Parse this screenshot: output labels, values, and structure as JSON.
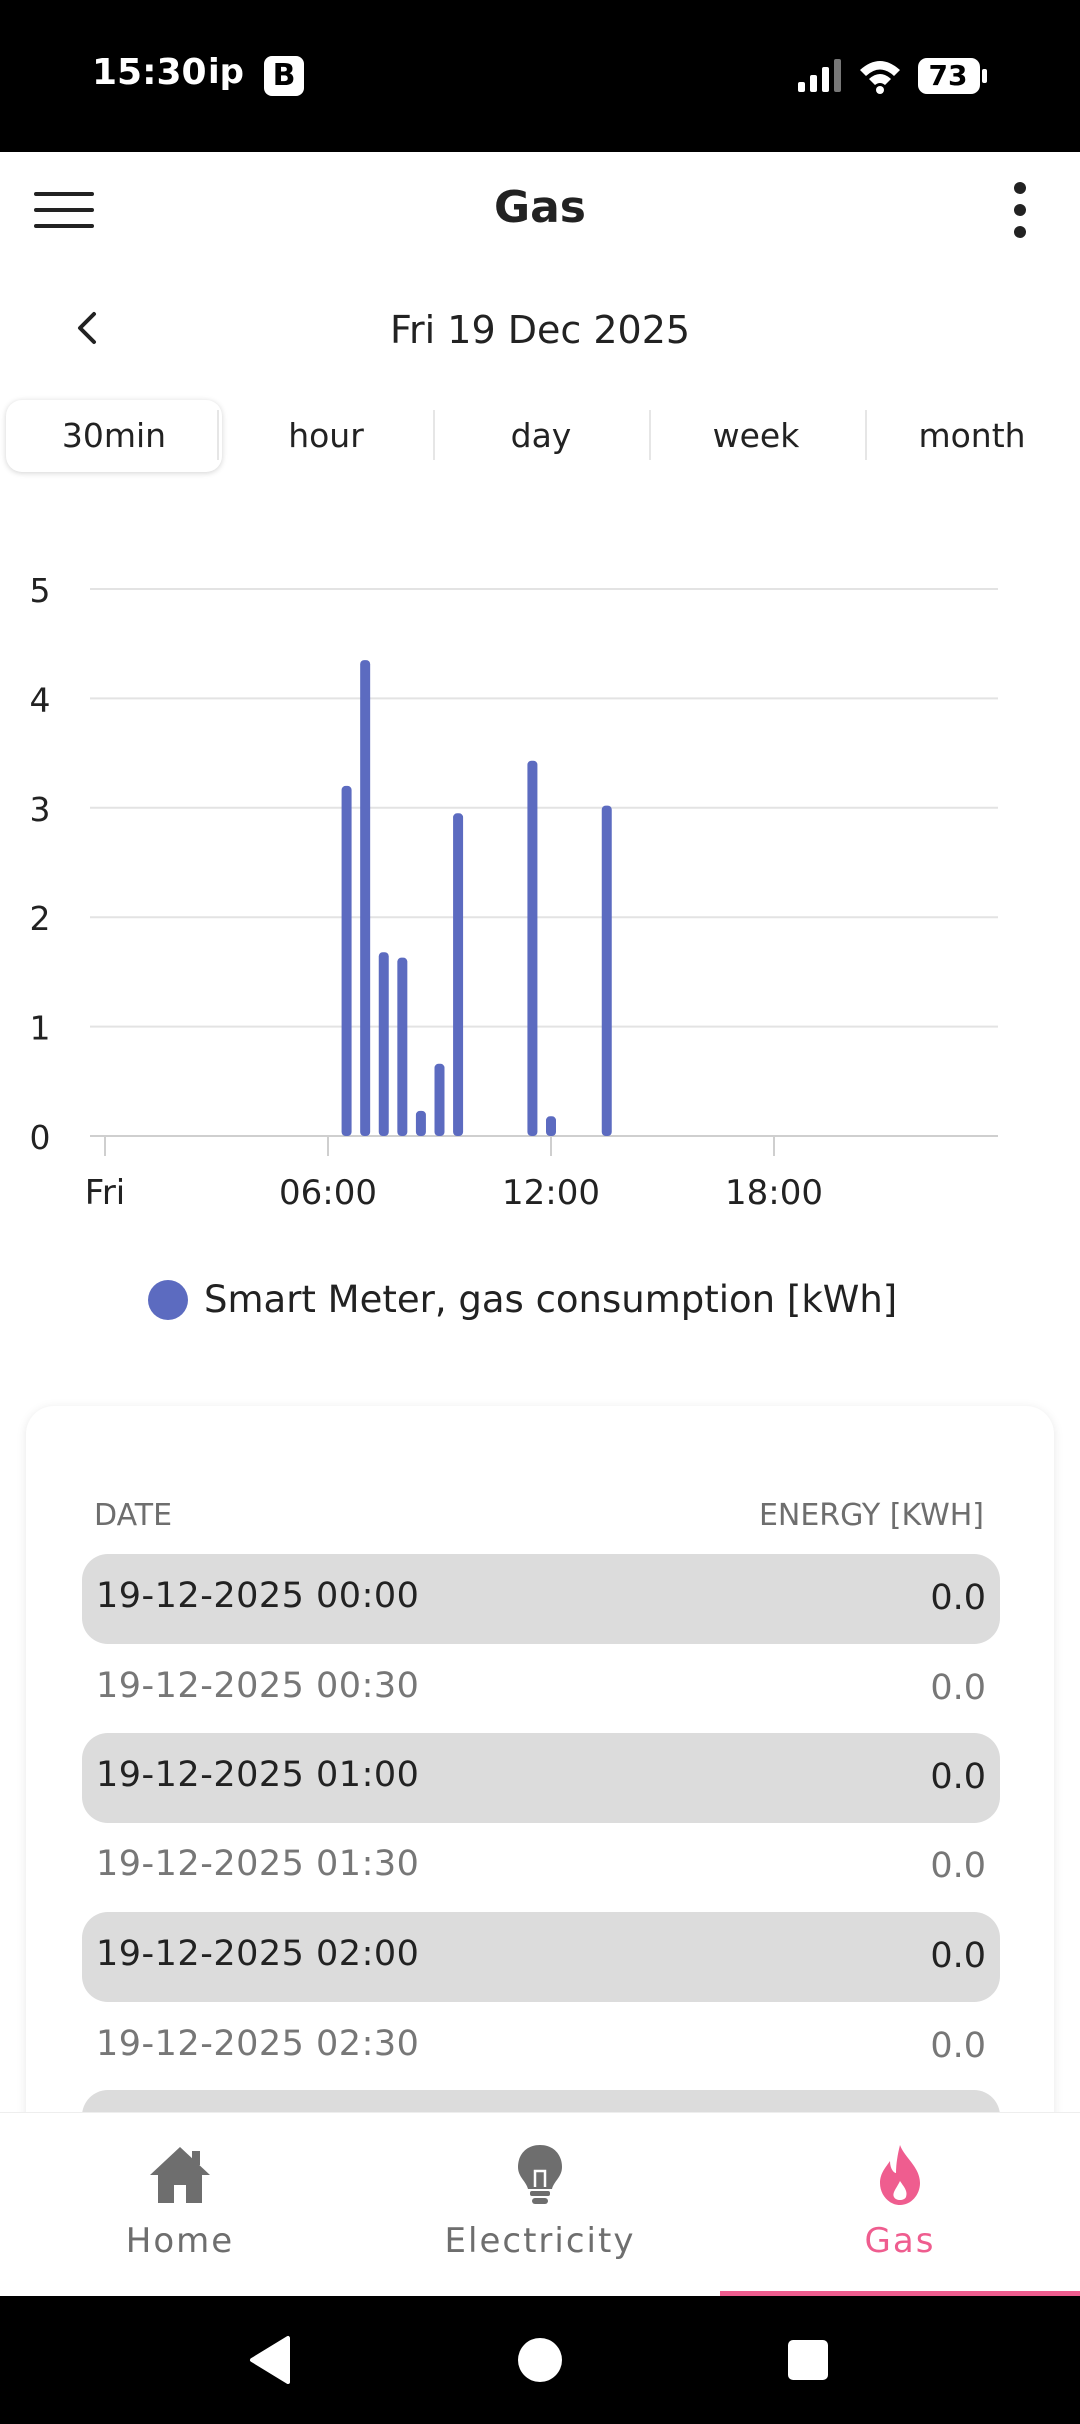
{
  "status_bar": {
    "time": "15:30",
    "carrier": "ip",
    "app_badge": "B",
    "battery": "73"
  },
  "app_bar": {
    "title": "Gas"
  },
  "date_nav": {
    "date": "Fri 19 Dec 2025"
  },
  "tabs": [
    {
      "label": "30min",
      "active": true
    },
    {
      "label": "hour",
      "active": false
    },
    {
      "label": "day",
      "active": false
    },
    {
      "label": "week",
      "active": false
    },
    {
      "label": "month",
      "active": false
    }
  ],
  "chart_data": {
    "type": "bar",
    "x_axis": "time",
    "x_ticks": [
      "Fri",
      "06:00",
      "12:00",
      "18:00"
    ],
    "ylim": [
      0,
      5
    ],
    "y_ticks": [
      "0",
      "1",
      "2",
      "3",
      "4",
      "5"
    ],
    "grid": true,
    "legend_position": "bottom",
    "series": [
      {
        "name": "Smart Meter, gas consumption [kWh]",
        "color": "#5c6bc0",
        "points": [
          {
            "x": "06:30",
            "y": 3.2
          },
          {
            "x": "07:00",
            "y": 4.35
          },
          {
            "x": "07:30",
            "y": 1.68
          },
          {
            "x": "08:00",
            "y": 1.63
          },
          {
            "x": "08:30",
            "y": 0.23
          },
          {
            "x": "09:00",
            "y": 0.66
          },
          {
            "x": "09:30",
            "y": 2.95
          },
          {
            "x": "11:30",
            "y": 3.43
          },
          {
            "x": "12:00",
            "y": 0.18
          },
          {
            "x": "13:30",
            "y": 3.02
          }
        ]
      }
    ]
  },
  "legend": {
    "label": "Smart Meter, gas consumption [kWh]",
    "color": "#5c6bc0"
  },
  "table": {
    "headers": {
      "date": "DATE",
      "energy": "ENERGY [KWH]"
    },
    "rows": [
      {
        "date": "19-12-2025 00:00",
        "value": "0.0"
      },
      {
        "date": "19-12-2025 00:30",
        "value": "0.0"
      },
      {
        "date": "19-12-2025 01:00",
        "value": "0.0"
      },
      {
        "date": "19-12-2025 01:30",
        "value": "0.0"
      },
      {
        "date": "19-12-2025 02:00",
        "value": "0.0"
      },
      {
        "date": "19-12-2025 02:30",
        "value": "0.0"
      }
    ]
  },
  "bottom_nav": [
    {
      "label": "Home",
      "icon": "home-icon",
      "active": false
    },
    {
      "label": "Electricity",
      "icon": "lightbulb-icon",
      "active": false
    },
    {
      "label": "Gas",
      "icon": "flame-icon",
      "active": true
    }
  ],
  "colors": {
    "accent": "#ef5d8f",
    "bar": "#5c6bc0",
    "inactive_nav": "#6e6e6e"
  }
}
